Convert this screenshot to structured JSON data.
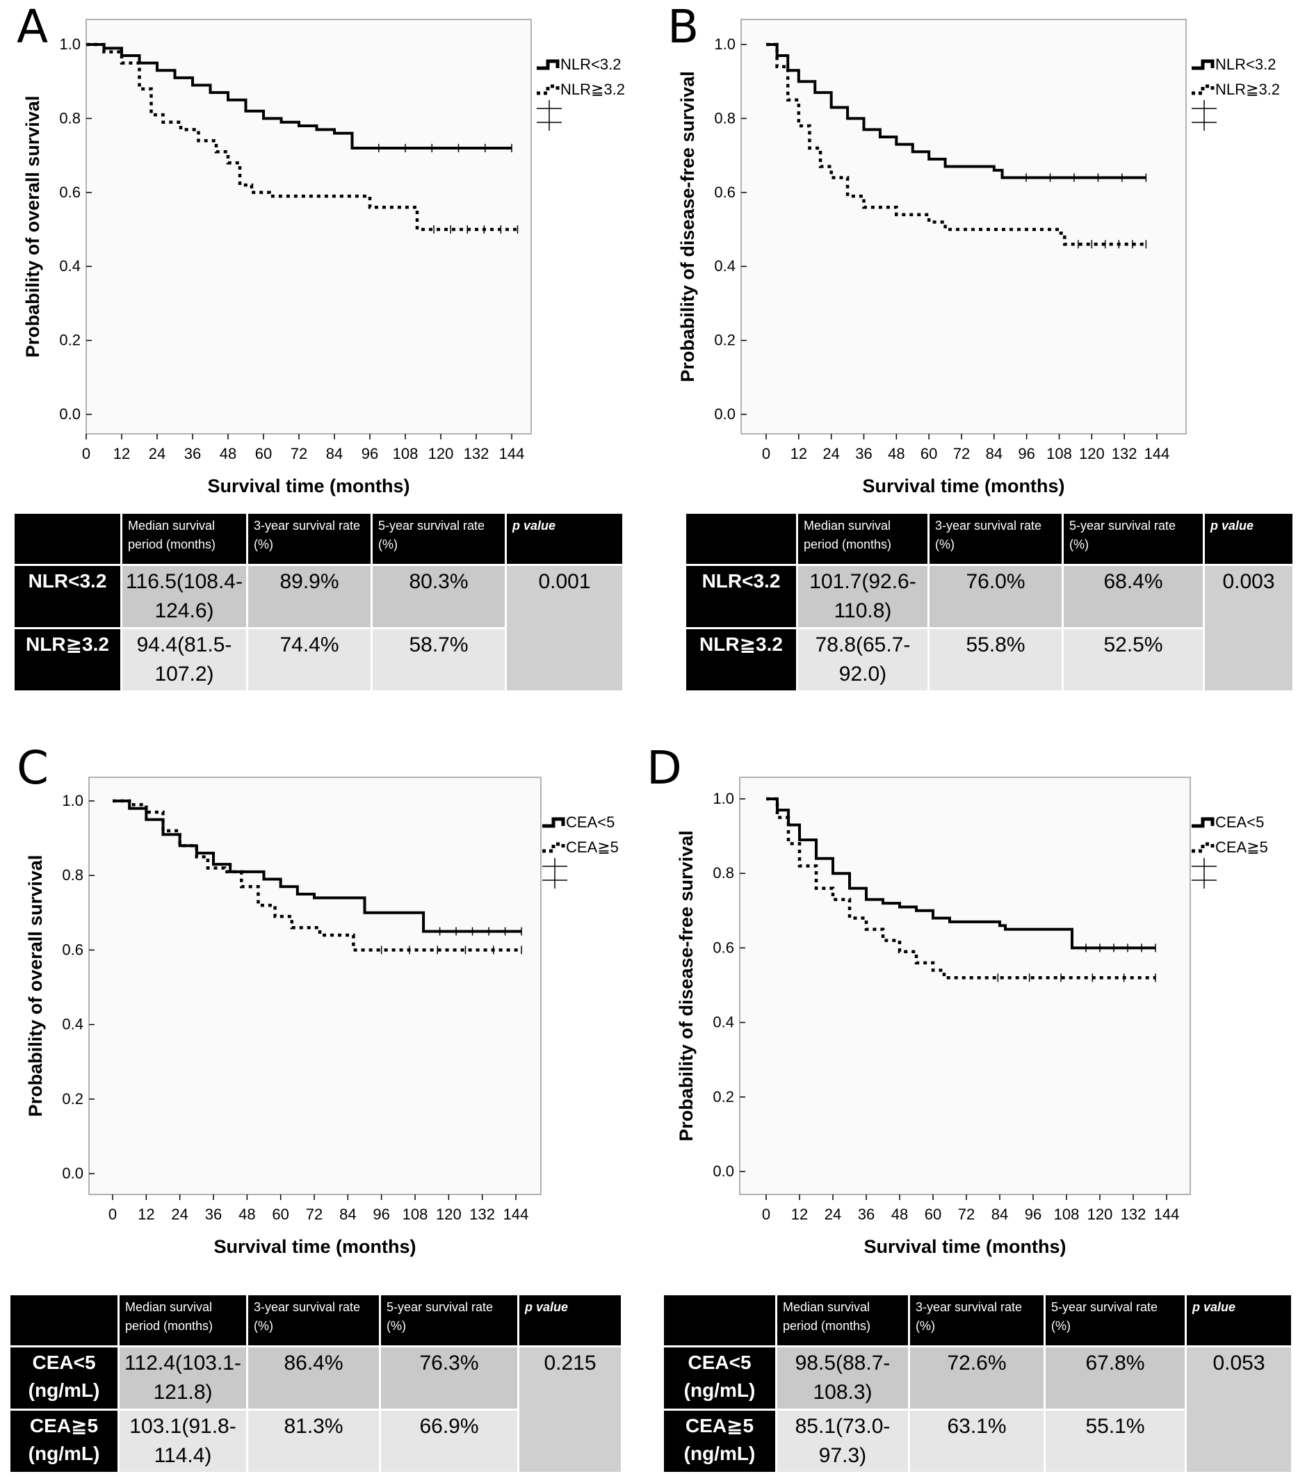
{
  "colors": {
    "plot_bg": "#fafafa",
    "table_header": "#000000",
    "cell_dark": "#c9c9c9",
    "cell_light": "#e6e6e6"
  },
  "panels": [
    {
      "letter": "A",
      "ylabel": "Probability of overall survival",
      "xlabel": "Survival time (months)",
      "legend": [
        "NLR<3.2",
        "NLR≧3.2"
      ],
      "table": {
        "headers": [
          "",
          "Median survival period (months)",
          "3-year survival rate (%)",
          "5-year survival rate (%)",
          "p value"
        ],
        "rows": [
          {
            "label": "NLR<3.2",
            "median": "116.5(108.4-124.6)",
            "y3": "89.9%",
            "y5": "80.3%"
          },
          {
            "label": "NLR≧3.2",
            "median": "94.4(81.5-107.2)",
            "y3": "74.4%",
            "y5": "58.7%"
          }
        ],
        "p": "0.001"
      }
    },
    {
      "letter": "B",
      "ylabel": "Probability of disease-free survival",
      "xlabel": "Survival time (months)",
      "legend": [
        "NLR<3.2",
        "NLR≧3.2"
      ],
      "table": {
        "headers": [
          "",
          "Median survival period (months)",
          "3-year survival rate (%)",
          "5-year survival rate (%)",
          "p value"
        ],
        "rows": [
          {
            "label": "NLR<3.2",
            "median": "101.7(92.6-110.8)",
            "y3": "76.0%",
            "y5": "68.4%"
          },
          {
            "label": "NLR≧3.2",
            "median": "78.8(65.7-92.0)",
            "y3": "55.8%",
            "y5": "52.5%"
          }
        ],
        "p": "0.003"
      }
    },
    {
      "letter": "C",
      "ylabel": "Probability of overall survival",
      "xlabel": "Survival time (months)",
      "legend": [
        "CEA<5",
        "CEA≧5"
      ],
      "table": {
        "headers": [
          "",
          "Median survival period (months)",
          "3-year survival rate (%)",
          "5-year survival rate (%)",
          "p value"
        ],
        "rows": [
          {
            "label": "CEA<5 (ng/mL)",
            "median": "112.4(103.1-121.8)",
            "y3": "86.4%",
            "y5": "76.3%"
          },
          {
            "label": "CEA≧5 (ng/mL)",
            "median": "103.1(91.8-114.4)",
            "y3": "81.3%",
            "y5": "66.9%"
          }
        ],
        "p": "0.215"
      }
    },
    {
      "letter": "D",
      "ylabel": "Probability of disease-free survival",
      "xlabel": "Survival time (months)",
      "legend": [
        "CEA<5",
        "CEA≧5"
      ],
      "table": {
        "headers": [
          "",
          "Median survival period (months)",
          "3-year survival rate (%)",
          "5-year survival rate (%)",
          "p value"
        ],
        "rows": [
          {
            "label": "CEA<5 (ng/mL)",
            "median": "98.5(88.7-108.3)",
            "y3": "72.6%",
            "y5": "67.8%"
          },
          {
            "label": "CEA≧5 (ng/mL)",
            "median": "85.1(73.0-97.3)",
            "y3": "63.1%",
            "y5": "55.1%"
          }
        ],
        "p": "0.053"
      }
    }
  ],
  "chart_data": [
    {
      "type": "line",
      "title": "A",
      "xlabel": "Survival time (months)",
      "ylabel": "Probability of overall survival",
      "xticks": [
        0,
        12,
        24,
        36,
        48,
        60,
        72,
        84,
        96,
        108,
        120,
        132,
        144
      ],
      "yticks": [
        0.0,
        0.2,
        0.4,
        0.6,
        0.8,
        1.0
      ],
      "xlim": [
        0,
        144
      ],
      "ylim": [
        0,
        1
      ],
      "series": [
        {
          "name": "NLR<3.2",
          "style": "solid",
          "x": [
            0,
            6,
            12,
            18,
            24,
            30,
            36,
            42,
            48,
            54,
            60,
            66,
            72,
            78,
            84,
            88,
            90,
            144
          ],
          "y": [
            1.0,
            0.99,
            0.97,
            0.95,
            0.93,
            0.91,
            0.89,
            0.87,
            0.85,
            0.82,
            0.8,
            0.79,
            0.78,
            0.77,
            0.76,
            0.76,
            0.72,
            0.72
          ]
        },
        {
          "name": "NLR≧3.2",
          "style": "dashed",
          "x": [
            0,
            6,
            12,
            18,
            22,
            26,
            32,
            38,
            44,
            48,
            52,
            56,
            62,
            90,
            96,
            110,
            112,
            146
          ],
          "y": [
            1.0,
            0.98,
            0.95,
            0.88,
            0.81,
            0.79,
            0.77,
            0.74,
            0.71,
            0.68,
            0.62,
            0.6,
            0.59,
            0.59,
            0.56,
            0.56,
            0.5,
            0.5
          ]
        }
      ]
    },
    {
      "type": "line",
      "title": "B",
      "xlabel": "Survival time (months)",
      "ylabel": "Probability of disease-free survival",
      "xticks": [
        0,
        12,
        24,
        36,
        48,
        60,
        72,
        84,
        96,
        108,
        120,
        132,
        144
      ],
      "yticks": [
        0.0,
        0.2,
        0.4,
        0.6,
        0.8,
        1.0
      ],
      "xlim": [
        0,
        144
      ],
      "ylim": [
        0,
        1
      ],
      "series": [
        {
          "name": "NLR<3.2",
          "style": "solid",
          "x": [
            0,
            4,
            8,
            12,
            18,
            24,
            30,
            36,
            42,
            48,
            54,
            60,
            66,
            72,
            84,
            87,
            140
          ],
          "y": [
            1.0,
            0.97,
            0.93,
            0.9,
            0.87,
            0.83,
            0.8,
            0.77,
            0.75,
            0.73,
            0.71,
            0.69,
            0.67,
            0.67,
            0.66,
            0.64,
            0.64
          ]
        },
        {
          "name": "NLR≧3.2",
          "style": "dashed",
          "x": [
            0,
            4,
            8,
            12,
            16,
            20,
            24,
            30,
            36,
            48,
            60,
            66,
            96,
            108,
            110,
            140
          ],
          "y": [
            1.0,
            0.94,
            0.85,
            0.78,
            0.72,
            0.67,
            0.64,
            0.59,
            0.56,
            0.54,
            0.52,
            0.5,
            0.5,
            0.49,
            0.46,
            0.46
          ]
        }
      ]
    },
    {
      "type": "line",
      "title": "C",
      "xlabel": "Survival time (months)",
      "ylabel": "Probability of overall survival",
      "xticks": [
        0,
        12,
        24,
        36,
        48,
        60,
        72,
        84,
        96,
        108,
        120,
        132,
        144
      ],
      "yticks": [
        0.0,
        0.2,
        0.4,
        0.6,
        0.8,
        1.0
      ],
      "xlim": [
        0,
        144
      ],
      "ylim": [
        0,
        1
      ],
      "series": [
        {
          "name": "CEA<5",
          "style": "solid",
          "x": [
            0,
            6,
            12,
            18,
            24,
            30,
            36,
            42,
            48,
            54,
            60,
            66,
            72,
            80,
            90,
            111,
            146
          ],
          "y": [
            1.0,
            0.98,
            0.95,
            0.91,
            0.88,
            0.86,
            0.83,
            0.81,
            0.81,
            0.79,
            0.77,
            0.75,
            0.74,
            0.74,
            0.7,
            0.65,
            0.65
          ]
        },
        {
          "name": "CEA≧5",
          "style": "dashed",
          "x": [
            0,
            6,
            12,
            18,
            24,
            30,
            34,
            40,
            46,
            52,
            58,
            64,
            74,
            86,
            146
          ],
          "y": [
            1.0,
            0.99,
            0.97,
            0.92,
            0.88,
            0.85,
            0.82,
            0.81,
            0.77,
            0.72,
            0.69,
            0.66,
            0.64,
            0.6,
            0.6
          ]
        }
      ]
    },
    {
      "type": "line",
      "title": "D",
      "xlabel": "Survival time (months)",
      "ylabel": "Probability of disease-free survival",
      "xticks": [
        0,
        12,
        24,
        36,
        48,
        60,
        72,
        84,
        96,
        108,
        120,
        132,
        144
      ],
      "yticks": [
        0.0,
        0.2,
        0.4,
        0.6,
        0.8,
        1.0
      ],
      "xlim": [
        0,
        144
      ],
      "ylim": [
        0,
        1
      ],
      "series": [
        {
          "name": "CEA<5",
          "style": "solid",
          "x": [
            0,
            4,
            8,
            12,
            18,
            24,
            30,
            36,
            42,
            48,
            54,
            60,
            66,
            72,
            84,
            86,
            108,
            110,
            140
          ],
          "y": [
            1.0,
            0.97,
            0.93,
            0.89,
            0.84,
            0.8,
            0.76,
            0.73,
            0.72,
            0.71,
            0.7,
            0.68,
            0.67,
            0.67,
            0.66,
            0.65,
            0.65,
            0.6,
            0.6
          ]
        },
        {
          "name": "CEA≧5",
          "style": "dashed",
          "x": [
            0,
            4,
            8,
            12,
            18,
            24,
            30,
            36,
            42,
            48,
            54,
            60,
            64,
            72,
            140
          ],
          "y": [
            1.0,
            0.95,
            0.88,
            0.82,
            0.76,
            0.73,
            0.68,
            0.65,
            0.62,
            0.59,
            0.56,
            0.54,
            0.52,
            0.52,
            0.52
          ]
        }
      ]
    }
  ]
}
